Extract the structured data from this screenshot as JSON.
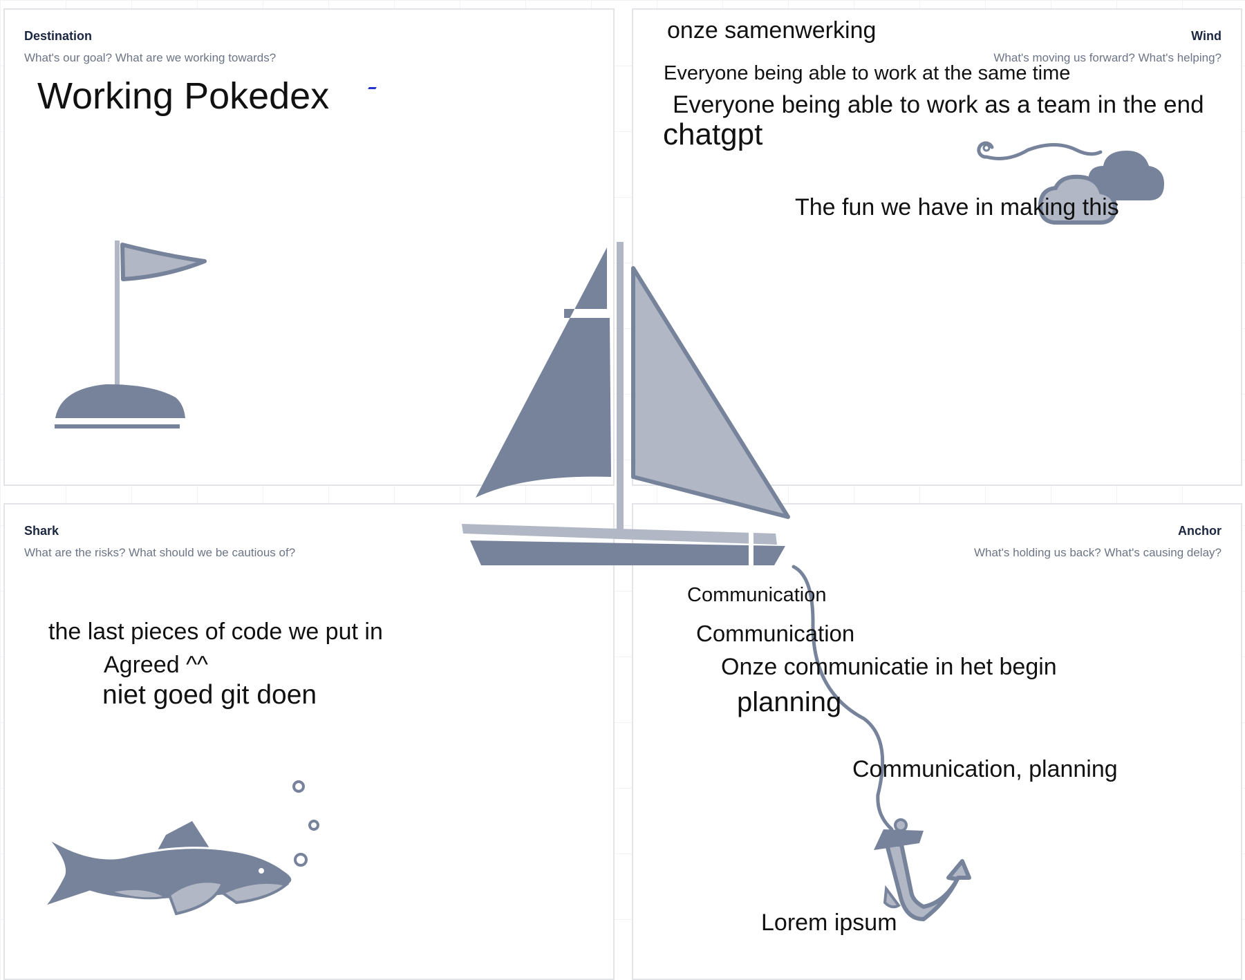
{
  "panels": {
    "destination": {
      "title": "Destination",
      "subtitle": "What's our goal? What are we working towards?"
    },
    "wind": {
      "title": "Wind",
      "subtitle": "What's moving us forward? What's helping?"
    },
    "shark": {
      "title": "Shark",
      "subtitle": "What are the risks? What should we be cautious of?"
    },
    "anchor": {
      "title": "Anchor",
      "subtitle": "What's holding us back? What's causing delay?"
    }
  },
  "notes": {
    "destination": [
      "Working Pokedex"
    ],
    "wind": [
      "onze samenwerking",
      "Everyone being able to work at the same time",
      "Everyone being able to work as a team in the end",
      "chatgpt",
      "The fun we have in making this"
    ],
    "shark": [
      "the last pieces of code we put in",
      "Agreed ^^",
      "niet goed git doen"
    ],
    "anchor": [
      "Communication",
      "Communication",
      "Onze communicatie in het begin",
      "planning",
      "Communication, planning",
      "Lorem ipsum"
    ]
  },
  "colors": {
    "illustration_dark": "#76839a",
    "illustration_light": "#b1b7c4",
    "panel_border": "#e2e4e8",
    "title": "#1b2640",
    "subtitle": "#6c7585"
  },
  "icons": [
    "flag-icon",
    "cloud-wind-icon",
    "sailboat-icon",
    "shark-icon",
    "anchor-icon"
  ]
}
